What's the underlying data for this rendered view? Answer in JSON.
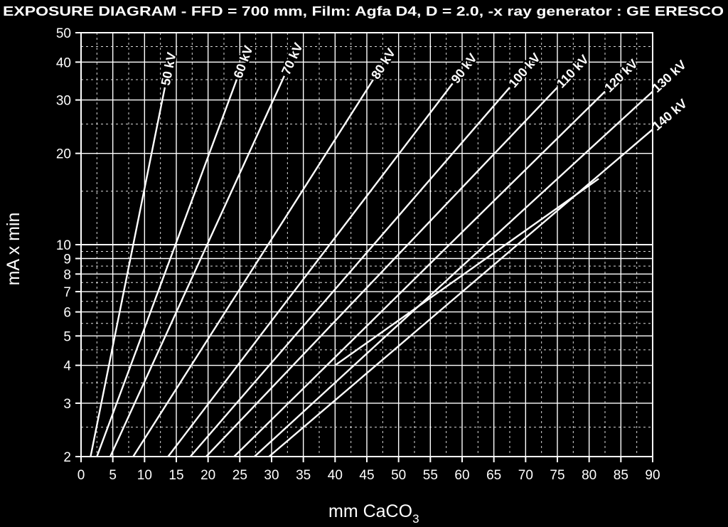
{
  "chart_data": {
    "type": "line",
    "title": "EXPOSURE DIAGRAM - FFD = 700 mm, Film: Agfa D4, D = 2.0, -x ray generator : GE ERESCO",
    "xlabel_main": "mm CaCO",
    "xlabel_sub": "3",
    "ylabel": "mA x min",
    "xlim": [
      0,
      90
    ],
    "ylim": [
      2,
      50
    ],
    "y_scale": "log",
    "grid": true,
    "x_ticks": [
      "0",
      "5",
      "10",
      "15",
      "20",
      "25",
      "30",
      "35",
      "40",
      "45",
      "50",
      "55",
      "60",
      "65",
      "70",
      "75",
      "80",
      "85",
      "90"
    ],
    "y_ticks": [
      {
        "value": 2,
        "label": "2"
      },
      {
        "value": 3,
        "label": "3"
      },
      {
        "value": 4,
        "label": "4"
      },
      {
        "value": 5,
        "label": "5"
      },
      {
        "value": 6,
        "label": "6"
      },
      {
        "value": 7,
        "label": "7"
      },
      {
        "value": 8,
        "label": "8"
      },
      {
        "value": 9,
        "label": "9"
      },
      {
        "value": 10,
        "label": "10"
      },
      {
        "value": 20,
        "label": "20"
      },
      {
        "value": 30,
        "label": "30"
      },
      {
        "value": 40,
        "label": "40"
      },
      {
        "value": 50,
        "label": "50"
      }
    ],
    "series": [
      {
        "name": "50 kV",
        "x": [
          1.5,
          13.2
        ],
        "y": [
          2,
          33
        ]
      },
      {
        "name": "60 kV",
        "x": [
          2.5,
          24.5
        ],
        "y": [
          2,
          35
        ]
      },
      {
        "name": "70 kV",
        "x": [
          4.6,
          32.0
        ],
        "y": [
          2,
          36
        ]
      },
      {
        "name": "80 kV",
        "x": [
          8.2,
          46.0
        ],
        "y": [
          2,
          35
        ]
      },
      {
        "name": "90 kV",
        "x": [
          13.7,
          58.5
        ],
        "y": [
          2,
          34
        ]
      },
      {
        "name": "100 kV",
        "x": [
          17.2,
          67.5
        ],
        "y": [
          2,
          33
        ]
      },
      {
        "name": "110 kV",
        "x": [
          19.7,
          75.0
        ],
        "y": [
          2,
          33
        ]
      },
      {
        "name": "120 kV",
        "x": [
          24.1,
          82.5
        ],
        "y": [
          2,
          32
        ]
      },
      {
        "name": "130 kV",
        "x": [
          27.3,
          90.0
        ],
        "y": [
          2,
          32
        ]
      },
      {
        "name": "140 kV",
        "x": [
          29.6,
          90.0
        ],
        "y": [
          2,
          24
        ]
      },
      {
        "name": "",
        "x": [
          40.0,
          81.5
        ],
        "y": [
          4,
          16.5
        ]
      }
    ]
  }
}
